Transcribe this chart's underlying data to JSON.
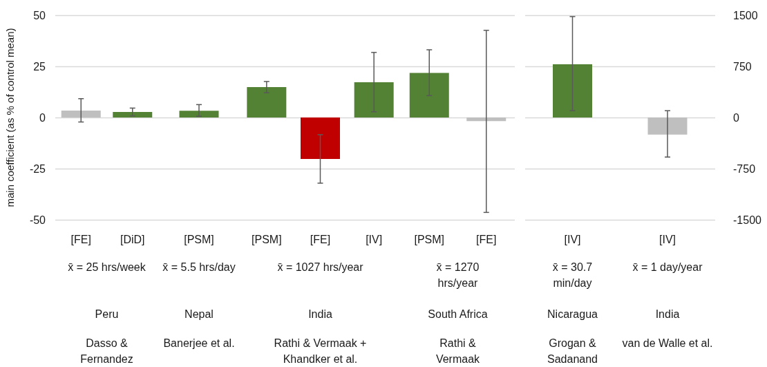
{
  "chart_data": [
    {
      "type": "bar",
      "ylabel": "main coefficient (as % of control mean)",
      "xlabel": "x̄ = 25 hrs/week\nPeru\nDasso & Fernandez",
      "categories": [
        "[FE]",
        "[DiD]"
      ],
      "values": [
        3.4,
        2.7
      ],
      "colors": [
        "#bfbfbf",
        "#548235"
      ],
      "errors": [
        [
          -2.2,
          9.2
        ],
        [
          0.8,
          4.6
        ]
      ],
      "ylim": [
        -50,
        50
      ],
      "yticks": [
        -50,
        -25,
        0,
        25,
        50
      ],
      "grid": "y"
    },
    {
      "type": "bar",
      "xlabel": "x̄ = 5.5 hrs/day\nNepal\nBanerjee et al.",
      "categories": [
        "[PSM]"
      ],
      "values": [
        3.3
      ],
      "colors": [
        "#548235"
      ],
      "errors": [
        [
          0.6,
          6.3
        ]
      ],
      "ylim": [
        -50,
        50
      ],
      "yticks": [
        -50,
        -25,
        0,
        25,
        50
      ],
      "grid": "y",
      "tick_labels": "x"
    },
    {
      "type": "bar",
      "xlabel": "x̄ = 1027 hrs/year\nIndia\nRathi & Vermaak + Khandker et al.",
      "categories": [
        "[PSM]",
        "[FE]",
        "[IV]"
      ],
      "values": [
        14.9,
        -20.3,
        17.2
      ],
      "colors": [
        "#548235",
        "#c00000",
        "#548235"
      ],
      "errors": [
        [
          12.1,
          17.6
        ],
        [
          -32.1,
          -8.4
        ],
        [
          2.8,
          31.8
        ]
      ],
      "ylim": [
        -50,
        50
      ],
      "yticks": [
        -50,
        -25,
        0,
        25,
        50
      ],
      "grid": "y",
      "tick_labels": "x"
    },
    {
      "type": "bar",
      "xlabel": "x̄ = 1270 hrs/year\nSouth Africa\nRathi & Vermaak",
      "categories": [
        "[PSM]",
        "[FE]"
      ],
      "values": [
        21.8,
        -1.8
      ],
      "colors": [
        "#548235",
        "#bfbfbf"
      ],
      "errors": [
        [
          10.7,
          33.1
        ],
        [
          -46.4,
          42.6
        ]
      ],
      "ylim": [
        -50,
        50
      ],
      "yticks": [
        -50,
        -25,
        0,
        25,
        50
      ],
      "grid": "y",
      "tick_labels": "x"
    },
    {
      "type": "bar",
      "xlabel": "x̄ = 30.7 min/day\nNicaragua\nGrogan & Sadanand",
      "categories": [
        "[IV]"
      ],
      "series": [
        {
          "axis": "y2",
          "values": [
            780
          ],
          "colors": [
            "#548235"
          ],
          "errors": [
            [
              100,
              1480
            ]
          ]
        }
      ],
      "y2lim": [
        -1500,
        1500
      ],
      "y2ticks": [
        -1500,
        -750,
        0,
        750,
        1500
      ],
      "grid": "y",
      "tick_labels": "x"
    },
    {
      "type": "bar",
      "xlabel": "x̄ = 1 day/year\nIndia\nvan de Walle et al.",
      "categories": [
        "[IV]"
      ],
      "series": [
        {
          "axis": "y2",
          "values": [
            -250
          ],
          "colors": [
            "#bfbfbf"
          ],
          "errors": [
            [
              -580,
              100
            ]
          ]
        }
      ],
      "y2lim": [
        -1500,
        1500
      ],
      "y2ticks": [
        -1500,
        -750,
        0,
        750,
        1500
      ],
      "grid": "y"
    }
  ]
}
